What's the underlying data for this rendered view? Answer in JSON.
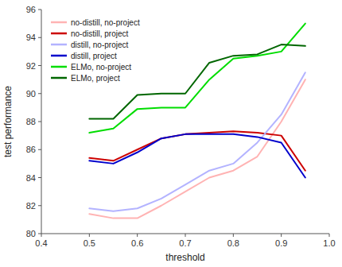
{
  "chart_data": {
    "type": "line",
    "xlabel": "threshold",
    "ylabel": "test performance",
    "x": [
      0.5,
      0.55,
      0.6,
      0.65,
      0.7,
      0.75,
      0.8,
      0.85,
      0.9,
      0.95
    ],
    "series": [
      {
        "name": "no-distill, no-project",
        "color": "#ffb3b3",
        "values": [
          81.4,
          81.1,
          81.1,
          82.0,
          83.0,
          84.0,
          84.5,
          85.5,
          88.0,
          91.0
        ]
      },
      {
        "name": "no-distill, project",
        "color": "#cc0000",
        "values": [
          85.4,
          85.2,
          86.0,
          86.8,
          87.1,
          87.2,
          87.3,
          87.2,
          87.0,
          84.5
        ]
      },
      {
        "name": "distill, no-project",
        "color": "#b3b3ff",
        "values": [
          81.8,
          81.6,
          81.8,
          82.5,
          83.5,
          84.5,
          85.0,
          86.5,
          88.5,
          91.5
        ]
      },
      {
        "name": "distill, project",
        "color": "#0000cc",
        "values": [
          85.2,
          85.0,
          85.8,
          86.8,
          87.1,
          87.1,
          87.1,
          86.9,
          86.5,
          84.0
        ]
      },
      {
        "name": "ELMo, no-project",
        "color": "#00dd00",
        "values": [
          87.2,
          87.5,
          88.9,
          89.0,
          89.0,
          91.0,
          92.5,
          92.7,
          93.0,
          95.0
        ]
      },
      {
        "name": "ELMo, project",
        "color": "#006600",
        "values": [
          88.2,
          88.2,
          89.9,
          90.0,
          90.0,
          92.2,
          92.7,
          92.8,
          93.5,
          93.4
        ]
      }
    ],
    "xlim": [
      0.4,
      1.0
    ],
    "ylim": [
      80,
      96
    ],
    "xticks": [
      0.4,
      0.5,
      0.6,
      0.7,
      0.8,
      0.9,
      {
        "value": 1.0,
        "label": "1.0"
      }
    ],
    "yticks": [
      80,
      82,
      84,
      86,
      88,
      90,
      92,
      94,
      96
    ],
    "legend": "upper left",
    "grid": false
  }
}
